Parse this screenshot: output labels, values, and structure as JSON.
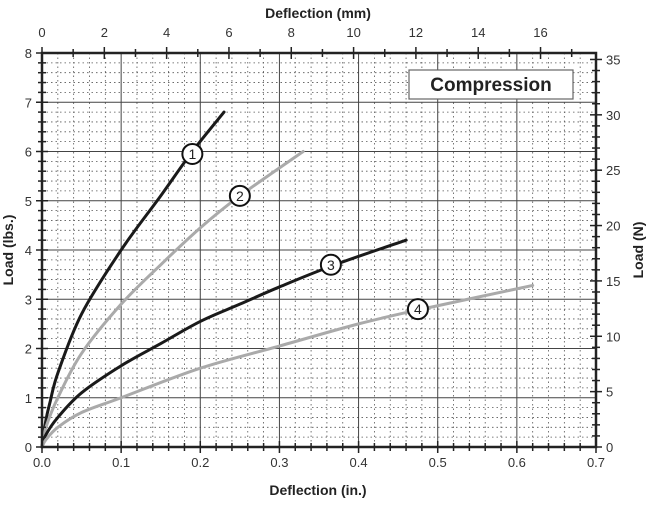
{
  "chart_data": {
    "type": "line",
    "title": "",
    "annotation": "Compression",
    "xlabel": "Deflection (in.)",
    "x2label": "Deflection (mm)",
    "ylabel": "Load (lbs.)",
    "y2label": "Load (N)",
    "xlim": [
      0,
      0.7
    ],
    "ylim": [
      0,
      8
    ],
    "x2lim": [
      0,
      17.78
    ],
    "y2lim": [
      0,
      35.6
    ],
    "xticks": [
      "0.0",
      "0.1",
      "0.2",
      "0.3",
      "0.4",
      "0.5",
      "0.6",
      "0.7"
    ],
    "yticks": [
      "0",
      "1",
      "2",
      "3",
      "4",
      "5",
      "6",
      "7",
      "8"
    ],
    "x2ticks": [
      "0",
      "2",
      "4",
      "6",
      "8",
      "10",
      "12",
      "14",
      "16"
    ],
    "y2ticks": [
      "0",
      "5",
      "10",
      "15",
      "20",
      "25",
      "30",
      "35"
    ],
    "grid": true,
    "series": [
      {
        "label": "1",
        "color": "#1a1a1a",
        "x": [
          0,
          0.005,
          0.01,
          0.02,
          0.05,
          0.1,
          0.15,
          0.19,
          0.23
        ],
        "y": [
          0,
          0.55,
          0.9,
          1.5,
          2.7,
          4.0,
          5.1,
          6.0,
          6.8
        ],
        "label_at": [
          0.19,
          5.95
        ]
      },
      {
        "label": "2",
        "color": "#aaaaaa",
        "x": [
          0,
          0.005,
          0.02,
          0.05,
          0.1,
          0.15,
          0.2,
          0.25,
          0.33
        ],
        "y": [
          0,
          0.4,
          1.0,
          1.9,
          2.9,
          3.7,
          4.45,
          5.1,
          6.0
        ],
        "label_at": [
          0.25,
          5.1
        ]
      },
      {
        "label": "3",
        "color": "#1a1a1a",
        "x": [
          0,
          0.005,
          0.02,
          0.05,
          0.1,
          0.15,
          0.2,
          0.25,
          0.3,
          0.37,
          0.46
        ],
        "y": [
          0,
          0.25,
          0.6,
          1.1,
          1.65,
          2.1,
          2.55,
          2.9,
          3.25,
          3.7,
          4.2
        ],
        "label_at": [
          0.365,
          3.7
        ]
      },
      {
        "label": "4",
        "color": "#aaaaaa",
        "x": [
          0,
          0.005,
          0.02,
          0.05,
          0.1,
          0.2,
          0.3,
          0.4,
          0.48,
          0.62
        ],
        "y": [
          0,
          0.15,
          0.4,
          0.7,
          1.0,
          1.6,
          2.05,
          2.5,
          2.8,
          3.28
        ],
        "label_at": [
          0.475,
          2.8
        ]
      }
    ]
  }
}
